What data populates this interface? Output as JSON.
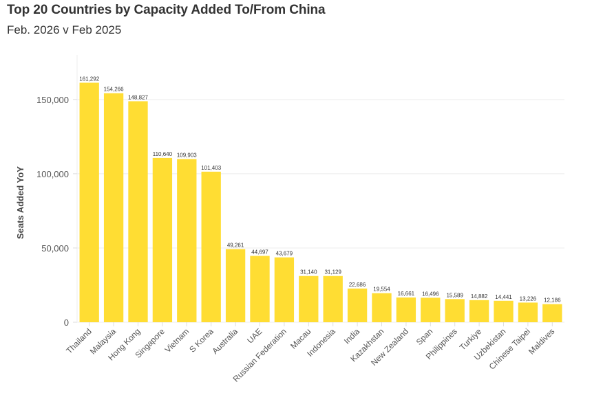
{
  "chart_data": {
    "type": "bar",
    "title": "Top 20 Countries by Capacity Added To/From China",
    "subtitle": "Feb. 2026 v Feb 2025",
    "xlabel": "",
    "ylabel": "Seats Added YoY",
    "ylim": [
      0,
      180000
    ],
    "yticks": [
      0,
      50000,
      100000,
      150000
    ],
    "ytick_labels": [
      "0",
      "50,000",
      "100,000",
      "150,000"
    ],
    "grid": true,
    "bar_color": "#FFDD33",
    "categories": [
      "Thailand",
      "Malaysia",
      "Hong Kong",
      "Singapore",
      "Vietnam",
      "S Korea",
      "Australia",
      "UAE",
      "Russian Federation",
      "Macau",
      "Indonesia",
      "India",
      "Kazakhstan",
      "New Zealand",
      "Span",
      "Philippines",
      "Turkiye",
      "Uzbekistan",
      "Chinese Taipei",
      "Maldives"
    ],
    "values": [
      161292,
      154266,
      148827,
      110640,
      109903,
      101403,
      49261,
      44697,
      43679,
      31140,
      31129,
      22686,
      19554,
      16661,
      16496,
      15589,
      14882,
      14441,
      13226,
      12186
    ],
    "data_labels": [
      "161,292",
      "154,266",
      "148,827",
      "110,640",
      "109,903",
      "101,403",
      "49,261",
      "44,697",
      "43,679",
      "31,140",
      "31,129",
      "22,686",
      "19,554",
      "16,661",
      "16,496",
      "15,589",
      "14,882",
      "14,441",
      "13,226",
      "12,186"
    ]
  }
}
